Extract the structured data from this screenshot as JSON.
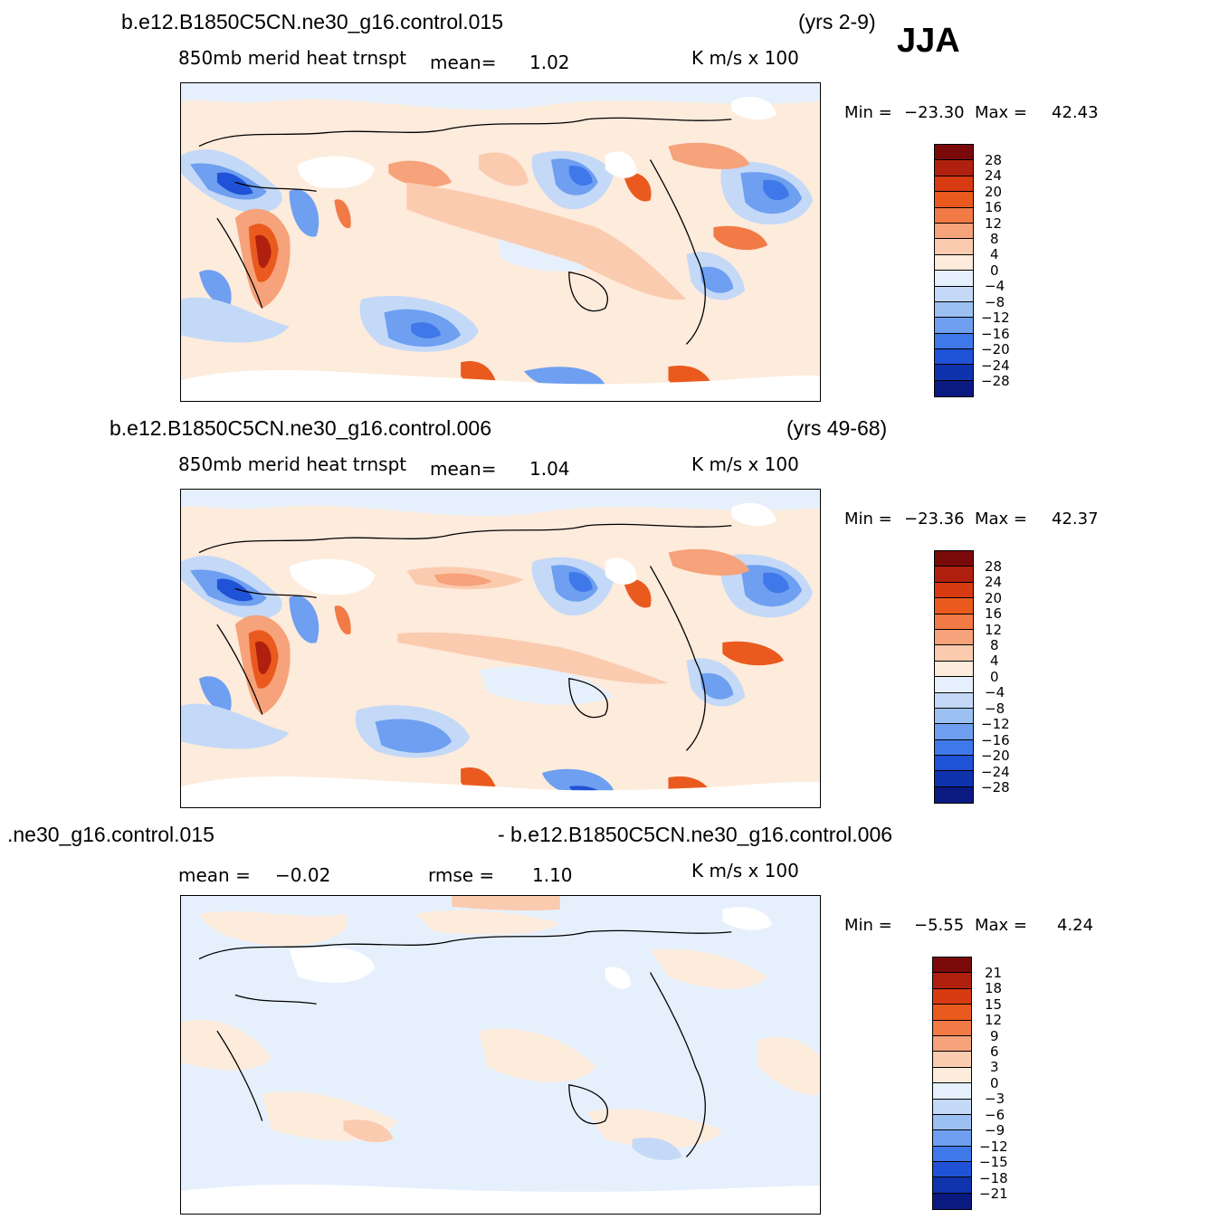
{
  "season": "JJA",
  "units": "K  m/s  x  100",
  "panels": [
    {
      "case_title": "b.e12.B1850C5CN.ne30_g16.control.015",
      "years": "(yrs 2-9)",
      "field": "850mb  merid  heat  trnspt",
      "stat1_label": "mean=",
      "stat1_value": "1.02",
      "stat2_label": "",
      "stat2_value": "",
      "min_label": "Min  =",
      "min_value": "−23.30",
      "max_label": "Max  =",
      "max_value": "42.43",
      "levels": [
        "28",
        "24",
        "20",
        "16",
        "12",
        "8",
        "4",
        "0",
        "−4",
        "−8",
        "−12",
        "−16",
        "−20",
        "−24",
        "−28"
      ]
    },
    {
      "case_title": "b.e12.B1850C5CN.ne30_g16.control.006",
      "years": "(yrs 49-68)",
      "field": "850mb  merid  heat  trnspt",
      "stat1_label": "mean=",
      "stat1_value": "1.04",
      "stat2_label": "",
      "stat2_value": "",
      "min_label": "Min  =",
      "min_value": "−23.36",
      "max_label": "Max  =",
      "max_value": "42.37",
      "levels": [
        "28",
        "24",
        "20",
        "16",
        "12",
        "8",
        "4",
        "0",
        "−4",
        "−8",
        "−12",
        "−16",
        "−20",
        "−24",
        "−28"
      ]
    },
    {
      "case_title": ".ne30_g16.control.015",
      "years": "- b.e12.B1850C5CN.ne30_g16.control.006",
      "field": "",
      "stat1_label": "mean  =",
      "stat1_value": "−0.02",
      "stat2_label": "rmse  =",
      "stat2_value": "1.10",
      "min_label": "Min  =",
      "min_value": "−5.55",
      "max_label": "Max  =",
      "max_value": "4.24",
      "levels": [
        "21",
        "18",
        "15",
        "12",
        "9",
        "6",
        "3",
        "0",
        "−3",
        "−6",
        "−9",
        "−12",
        "−15",
        "−18",
        "−21"
      ]
    }
  ],
  "colors": {
    "bins": [
      "#7a0a0a",
      "#b0200f",
      "#d83a12",
      "#ea5a1e",
      "#f27a46",
      "#f6a27a",
      "#fbcbb0",
      "#fdebdc",
      "#e6f0fc",
      "#c4d9f7",
      "#9cc0f2",
      "#6e9ff0",
      "#3f78e8",
      "#1f52d6",
      "#0f33ad",
      "#0a1a80"
    ]
  }
}
